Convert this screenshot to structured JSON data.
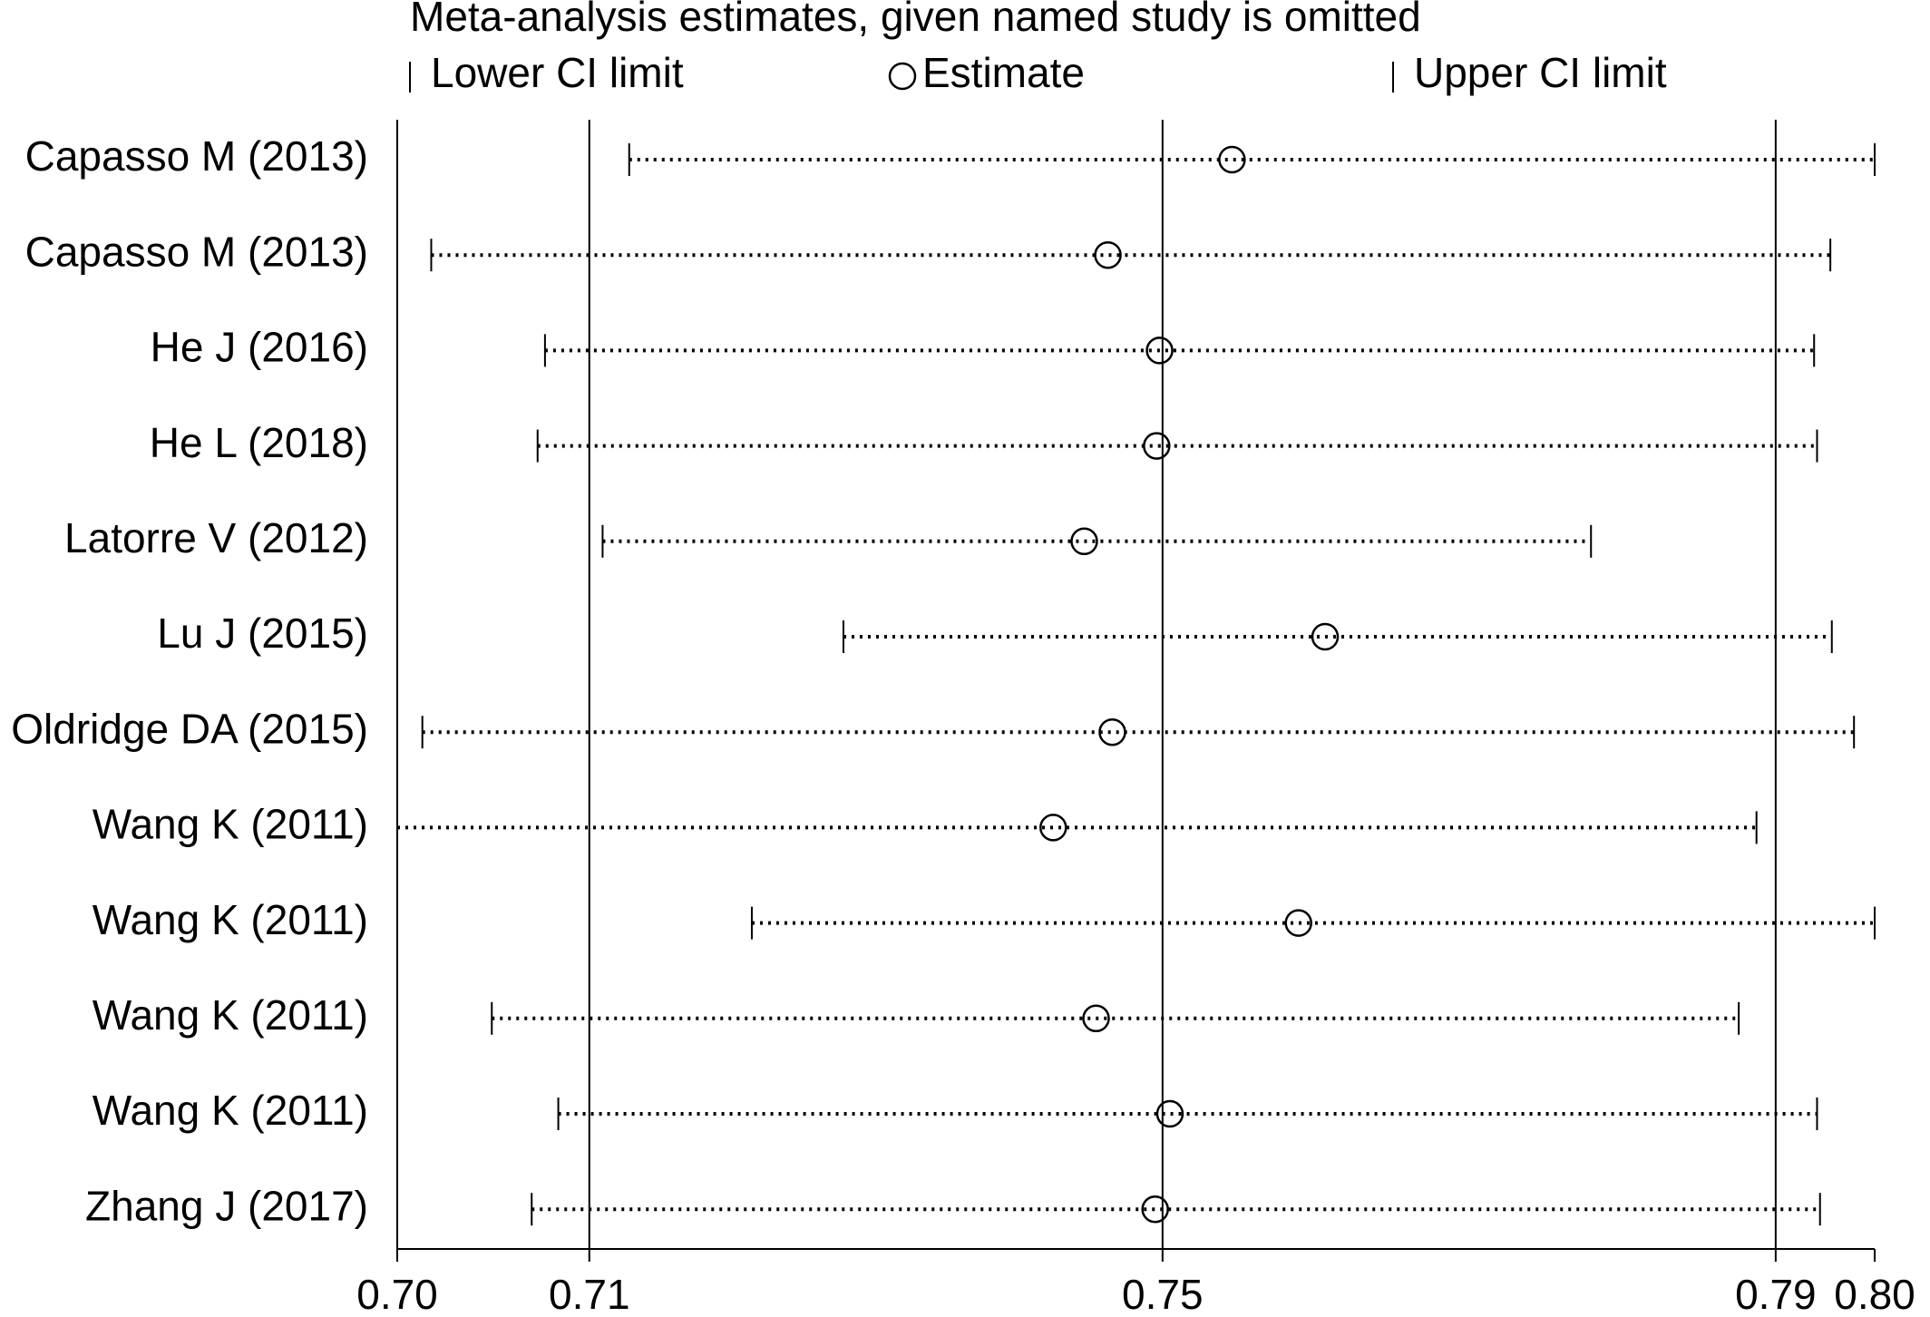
{
  "chart_data": {
    "type": "influence",
    "title": "Meta-analysis estimates, given named study is omitted",
    "categories": [
      "Capasso M (2013)",
      "Capasso M (2013)",
      "He J (2016)",
      "He L (2018)",
      "Latorre V (2012)",
      "Lu J (2015)",
      "Oldridge DA (2015)",
      "Wang K (2011)",
      "Wang K (2011)",
      "Wang K (2011)",
      "Wang K (2011)",
      "Zhang J (2017)"
    ],
    "series": [
      {
        "name": "Lower CI limit",
        "color": "#000000",
        "values": [
          0.7157,
          0.7023,
          0.71,
          0.7095,
          0.7139,
          0.7302,
          0.7017,
          0.7,
          0.724,
          0.7064,
          0.7109,
          0.7091
        ]
      },
      {
        "name": "Estimate",
        "color": "#000000",
        "values": [
          0.7565,
          0.7481,
          0.7516,
          0.7514,
          0.7465,
          0.7628,
          0.7484,
          0.7444,
          0.761,
          0.7473,
          0.7523,
          0.7513
        ]
      },
      {
        "name": "Upper CI limit",
        "color": "#000000",
        "values": [
          0.8,
          0.797,
          0.7959,
          0.7961,
          0.7808,
          0.7971,
          0.7986,
          0.792,
          0.8,
          0.7908,
          0.7961,
          0.7963
        ]
      }
    ],
    "xlim": [
      0.7,
      0.8
    ],
    "xticks": [
      {
        "value": 0.7,
        "label": "0.70"
      },
      {
        "value": 0.713,
        "label": "0.71"
      },
      {
        "value": 0.7518,
        "label": "0.75"
      },
      {
        "value": 0.7933,
        "label": "0.79"
      },
      {
        "value": 0.8,
        "label": "0.80"
      }
    ],
    "reference_lines": [
      0.713,
      0.7518,
      0.7933
    ]
  }
}
